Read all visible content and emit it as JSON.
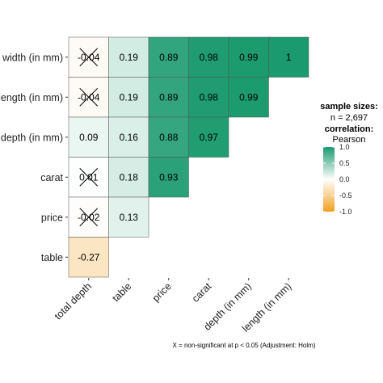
{
  "chart_data": {
    "type": "heatmap",
    "title": "",
    "rows": [
      "width (in mm)",
      "length (in mm)",
      "depth (in mm)",
      "carat",
      "price",
      "table"
    ],
    "cols": [
      "total depth",
      "table",
      "price",
      "carat",
      "depth (in mm)",
      "length (in mm)"
    ],
    "cells": [
      [
        {
          "v": -0.04,
          "label": "-0.04",
          "ns": true
        },
        {
          "v": 0.19,
          "label": "0.19"
        },
        {
          "v": 0.89,
          "label": "0.89"
        },
        {
          "v": 0.98,
          "label": "0.98"
        },
        {
          "v": 0.99,
          "label": "0.99"
        },
        {
          "v": 1.0,
          "label": "1"
        }
      ],
      [
        {
          "v": -0.04,
          "label": "-0.04",
          "ns": true
        },
        {
          "v": 0.19,
          "label": "0.19"
        },
        {
          "v": 0.89,
          "label": "0.89"
        },
        {
          "v": 0.98,
          "label": "0.98"
        },
        {
          "v": 0.99,
          "label": "0.99"
        },
        null
      ],
      [
        {
          "v": 0.09,
          "label": "0.09"
        },
        {
          "v": 0.16,
          "label": "0.16"
        },
        {
          "v": 0.88,
          "label": "0.88"
        },
        {
          "v": 0.97,
          "label": "0.97"
        },
        null,
        null
      ],
      [
        {
          "v": 0.01,
          "label": "0.01",
          "ns": true
        },
        {
          "v": 0.18,
          "label": "0.18"
        },
        {
          "v": 0.93,
          "label": "0.93"
        },
        null,
        null,
        null
      ],
      [
        {
          "v": -0.02,
          "label": "-0.02",
          "ns": true
        },
        {
          "v": 0.13,
          "label": "0.13"
        },
        null,
        null,
        null,
        null
      ],
      [
        {
          "v": -0.27,
          "label": "-0.27"
        },
        null,
        null,
        null,
        null,
        null
      ]
    ],
    "colors": {
      "positive": "#1a9a6e",
      "mid": "#ffffff",
      "negative": "#f0a020"
    },
    "legend": {
      "sample_sizes_label": "sample sizes:",
      "n_text": "n = 2,697",
      "correlation_label": "correlation:",
      "method": "Pearson",
      "ticks": [
        1.0,
        0.5,
        0.0,
        -0.5,
        -1.0
      ],
      "tick_labels": [
        "1.0",
        "0.5",
        "0.0",
        "-0.5",
        "-1.0"
      ],
      "placement": "right"
    },
    "caption": "X = non-significant at p < 0.05 (Adjustment: Holm)"
  }
}
